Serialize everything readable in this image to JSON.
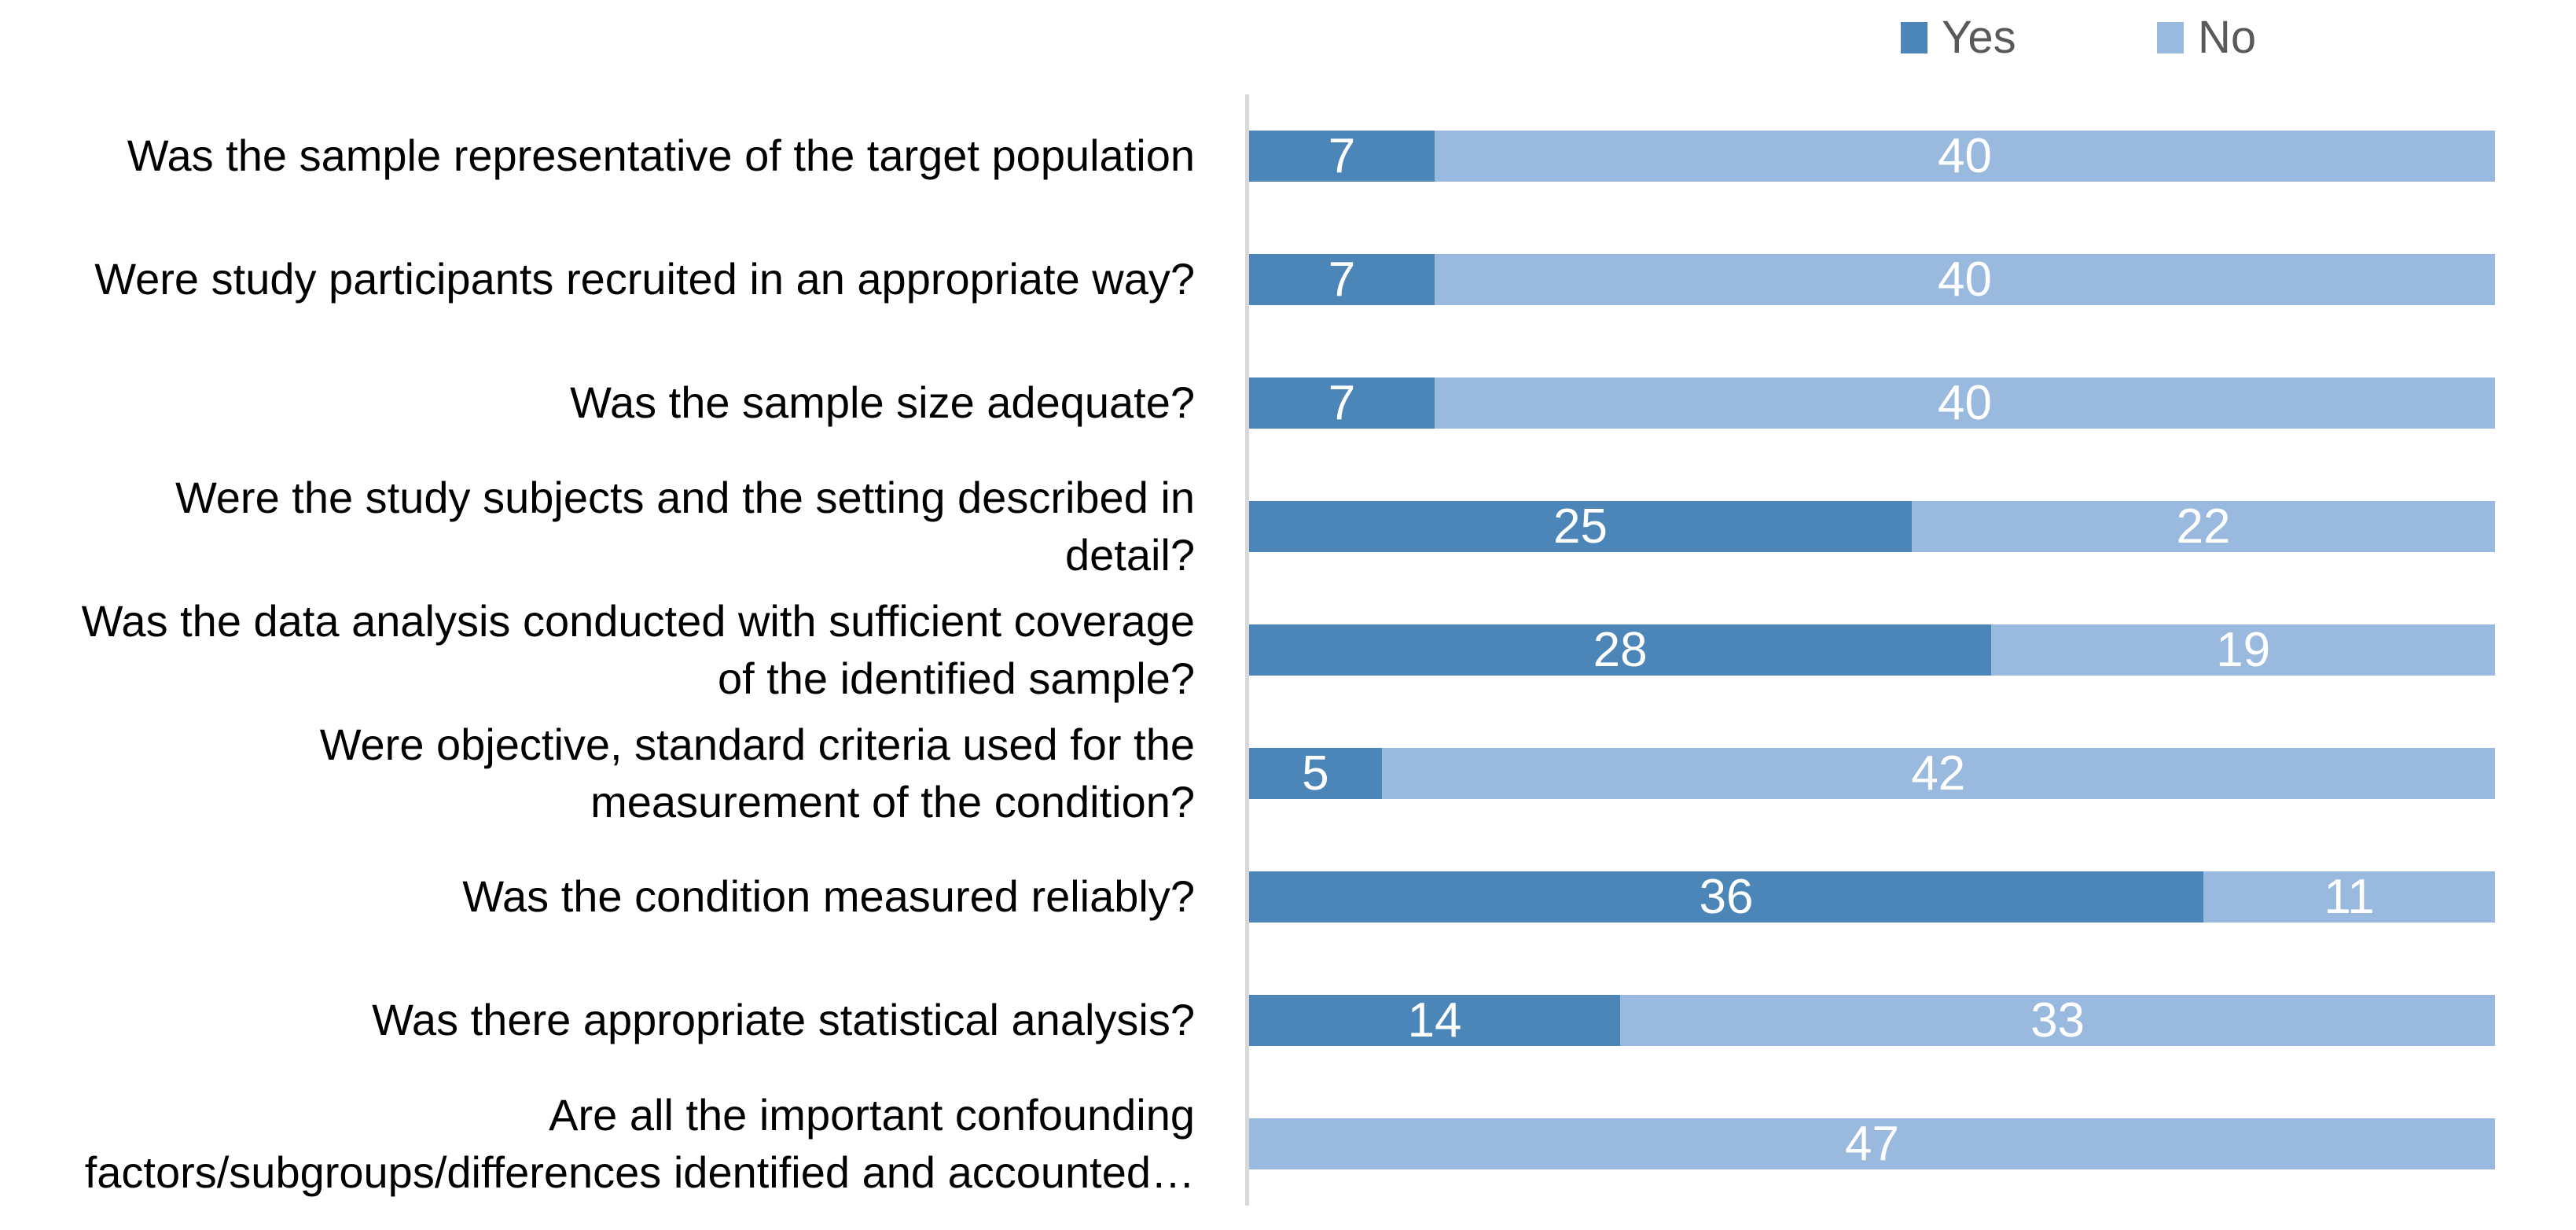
{
  "legend": {
    "items": [
      {
        "label": "Yes",
        "color": "#4C86B9"
      },
      {
        "label": "No",
        "color": "#9AB9DF"
      }
    ]
  },
  "colors": {
    "yes_bar": "#4C86B9",
    "no_bar": "#9AB9DF",
    "value_label": "#ffffff",
    "legend_text": "#595959",
    "axis_line": "#d8d8d8",
    "category_text": "#000000"
  },
  "chart_data": {
    "type": "bar",
    "orientation": "horizontal",
    "stacked": true,
    "title": "",
    "xlabel": "",
    "ylabel": "",
    "xlim": [
      0,
      47
    ],
    "grid": false,
    "legend_position": "top-right",
    "value_labels": "inside-center-white",
    "categories": [
      "Was the sample representative of the target population",
      "Were study participants recruited in an appropriate way?",
      "Was the sample size adequate?",
      "Were the study subjects and the setting described in\ndetail?",
      "Was the data analysis conducted with sufficient coverage\nof the identified sample?",
      "Were objective, standard criteria used for the\nmeasurement of the condition?",
      "Was the condition measured reliably?",
      "Was there appropriate statistical analysis?",
      "Are all the important confounding\nfactors/subgroups/differences identified and accounted…"
    ],
    "series": [
      {
        "name": "Yes",
        "color": "#4C86B9",
        "values": [
          7,
          7,
          7,
          25,
          28,
          5,
          36,
          14,
          0
        ]
      },
      {
        "name": "No",
        "color": "#9AB9DF",
        "values": [
          40,
          40,
          40,
          22,
          19,
          42,
          11,
          33,
          47
        ]
      }
    ],
    "bar_total": 47
  }
}
